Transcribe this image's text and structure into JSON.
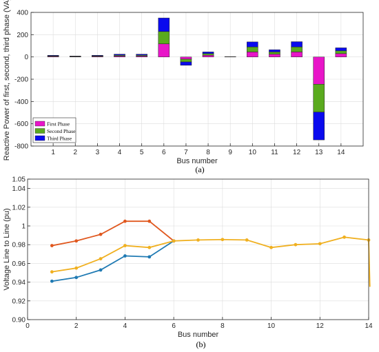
{
  "chart_data": [
    {
      "type": "bar",
      "stacked": true,
      "xlabel": "Bus number",
      "ylabel": "Reactive Power of first, second, third phase (VA)",
      "caption": "(a)",
      "categories": [
        "1",
        "2",
        "3",
        "4",
        "5",
        "6",
        "7",
        "8",
        "9",
        "10",
        "11",
        "12",
        "13",
        "14"
      ],
      "ylim": [
        -800,
        400
      ],
      "yticks": [
        -800,
        -600,
        -400,
        -200,
        0,
        200,
        400
      ],
      "grid": true,
      "legend_position": "bottom-left",
      "series": [
        {
          "name": "First Phase",
          "color": "#e815c8",
          "values": [
            5,
            3,
            5,
            8,
            8,
            118,
            -20,
            15,
            1,
            45,
            25,
            45,
            -245,
            30
          ]
        },
        {
          "name": "Second Phase",
          "color": "#5aaa1e",
          "values": [
            5,
            2,
            5,
            8,
            8,
            110,
            -25,
            15,
            1,
            45,
            20,
            45,
            -250,
            25
          ]
        },
        {
          "name": "Third Phase",
          "color": "#0a0aee",
          "values": [
            5,
            3,
            5,
            9,
            9,
            122,
            -30,
            15,
            1,
            45,
            20,
            47,
            -250,
            27
          ]
        }
      ]
    },
    {
      "type": "line",
      "xlabel": "Bus number",
      "ylabel": "Voltage Line to Line (pu)",
      "caption": "(b)",
      "xlim": [
        0,
        14
      ],
      "ylim": [
        0.9,
        1.05
      ],
      "xticks": [
        0,
        2,
        4,
        6,
        8,
        10,
        12,
        14
      ],
      "yticks": [
        0.9,
        0.92,
        0.94,
        0.96,
        0.98,
        1,
        1.02,
        1.04,
        1.05
      ],
      "grid": true,
      "series": [
        {
          "color": "#e0581f",
          "x": [
            1,
            2,
            3,
            4,
            5,
            6
          ],
          "values": [
            0.979,
            0.984,
            0.991,
            1.005,
            1.005,
            0.984
          ]
        },
        {
          "color": "#1f7ab3",
          "x": [
            1,
            2,
            3,
            4,
            5,
            6
          ],
          "values": [
            0.941,
            0.945,
            0.953,
            0.968,
            0.967,
            0.984
          ]
        },
        {
          "color": "#f0b020",
          "x": [
            1,
            2,
            3,
            4,
            5,
            6,
            7,
            8,
            9,
            10,
            11,
            12,
            13,
            14,
            14.05
          ],
          "values": [
            0.951,
            0.955,
            0.965,
            0.979,
            0.977,
            0.984,
            0.985,
            0.9855,
            0.985,
            0.977,
            0.98,
            0.981,
            0.988,
            0.985,
            0.935
          ]
        }
      ]
    }
  ]
}
